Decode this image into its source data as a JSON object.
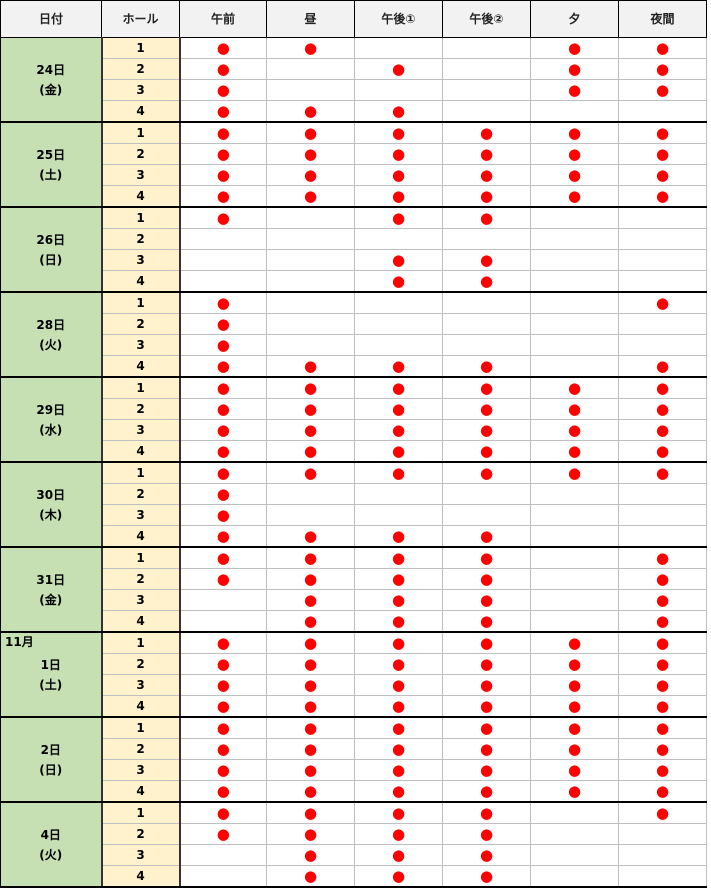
{
  "header": [
    "日付",
    "ホール",
    "午前",
    "昼",
    "午後①",
    "午後②",
    "夕",
    "夜間"
  ],
  "mark": "●",
  "groups": [
    {
      "day": "24日",
      "weekday": "(金)",
      "rows": [
        {
          "hall": 1,
          "cells": [
            true,
            true,
            false,
            false,
            true,
            true
          ]
        },
        {
          "hall": 2,
          "cells": [
            true,
            false,
            true,
            false,
            true,
            true
          ]
        },
        {
          "hall": 3,
          "cells": [
            true,
            false,
            false,
            false,
            true,
            true
          ]
        },
        {
          "hall": 4,
          "cells": [
            true,
            true,
            true,
            false,
            false,
            false
          ]
        }
      ]
    },
    {
      "day": "25日",
      "weekday": "(土)",
      "rows": [
        {
          "hall": 1,
          "cells": [
            true,
            true,
            true,
            true,
            true,
            true
          ]
        },
        {
          "hall": 2,
          "cells": [
            true,
            true,
            true,
            true,
            true,
            true
          ]
        },
        {
          "hall": 3,
          "cells": [
            true,
            true,
            true,
            true,
            true,
            true
          ]
        },
        {
          "hall": 4,
          "cells": [
            true,
            true,
            true,
            true,
            true,
            true
          ]
        }
      ]
    },
    {
      "day": "26日",
      "weekday": "(日)",
      "rows": [
        {
          "hall": 1,
          "cells": [
            true,
            false,
            true,
            true,
            false,
            false
          ]
        },
        {
          "hall": 2,
          "cells": [
            false,
            false,
            false,
            false,
            false,
            false
          ]
        },
        {
          "hall": 3,
          "cells": [
            false,
            false,
            true,
            true,
            false,
            false
          ]
        },
        {
          "hall": 4,
          "cells": [
            false,
            false,
            true,
            true,
            false,
            false
          ]
        }
      ]
    },
    {
      "day": "28日",
      "weekday": "(火)",
      "rows": [
        {
          "hall": 1,
          "cells": [
            true,
            false,
            false,
            false,
            false,
            true
          ]
        },
        {
          "hall": 2,
          "cells": [
            true,
            false,
            false,
            false,
            false,
            false
          ]
        },
        {
          "hall": 3,
          "cells": [
            true,
            false,
            false,
            false,
            false,
            false
          ]
        },
        {
          "hall": 4,
          "cells": [
            true,
            true,
            true,
            true,
            false,
            true
          ]
        }
      ]
    },
    {
      "day": "29日",
      "weekday": "(水)",
      "rows": [
        {
          "hall": 1,
          "cells": [
            true,
            true,
            true,
            true,
            true,
            true
          ]
        },
        {
          "hall": 2,
          "cells": [
            true,
            true,
            true,
            true,
            true,
            true
          ]
        },
        {
          "hall": 3,
          "cells": [
            true,
            true,
            true,
            true,
            true,
            true
          ]
        },
        {
          "hall": 4,
          "cells": [
            true,
            true,
            true,
            true,
            true,
            true
          ]
        }
      ]
    },
    {
      "day": "30日",
      "weekday": "(木)",
      "rows": [
        {
          "hall": 1,
          "cells": [
            true,
            true,
            true,
            true,
            true,
            true
          ]
        },
        {
          "hall": 2,
          "cells": [
            true,
            false,
            false,
            false,
            false,
            false
          ]
        },
        {
          "hall": 3,
          "cells": [
            true,
            false,
            false,
            false,
            false,
            false
          ]
        },
        {
          "hall": 4,
          "cells": [
            true,
            true,
            true,
            true,
            false,
            false
          ]
        }
      ]
    },
    {
      "day": "31日",
      "weekday": "(金)",
      "rows": [
        {
          "hall": 1,
          "cells": [
            true,
            true,
            true,
            true,
            false,
            true
          ]
        },
        {
          "hall": 2,
          "cells": [
            true,
            true,
            true,
            true,
            false,
            true
          ]
        },
        {
          "hall": 3,
          "cells": [
            false,
            true,
            true,
            true,
            false,
            true
          ]
        },
        {
          "hall": 4,
          "cells": [
            false,
            true,
            true,
            true,
            false,
            true
          ]
        }
      ]
    },
    {
      "month": "11月",
      "day": "1日",
      "weekday": "(土)",
      "rows": [
        {
          "hall": 1,
          "cells": [
            true,
            true,
            true,
            true,
            true,
            true
          ]
        },
        {
          "hall": 2,
          "cells": [
            true,
            true,
            true,
            true,
            true,
            true
          ]
        },
        {
          "hall": 3,
          "cells": [
            true,
            true,
            true,
            true,
            true,
            true
          ]
        },
        {
          "hall": 4,
          "cells": [
            true,
            true,
            true,
            true,
            true,
            true
          ]
        }
      ]
    },
    {
      "day": "2日",
      "weekday": "(日)",
      "rows": [
        {
          "hall": 1,
          "cells": [
            true,
            true,
            true,
            true,
            true,
            true
          ]
        },
        {
          "hall": 2,
          "cells": [
            true,
            true,
            true,
            true,
            true,
            true
          ]
        },
        {
          "hall": 3,
          "cells": [
            true,
            true,
            true,
            true,
            true,
            true
          ]
        },
        {
          "hall": 4,
          "cells": [
            true,
            true,
            true,
            true,
            true,
            true
          ]
        }
      ]
    },
    {
      "day": "4日",
      "weekday": "(火)",
      "rows": [
        {
          "hall": 1,
          "cells": [
            true,
            true,
            true,
            true,
            false,
            true
          ]
        },
        {
          "hall": 2,
          "cells": [
            true,
            true,
            true,
            true,
            false,
            false
          ]
        },
        {
          "hall": 3,
          "cells": [
            false,
            true,
            true,
            true,
            false,
            false
          ]
        },
        {
          "hall": 4,
          "cells": [
            false,
            true,
            true,
            true,
            false,
            false
          ]
        }
      ]
    }
  ]
}
